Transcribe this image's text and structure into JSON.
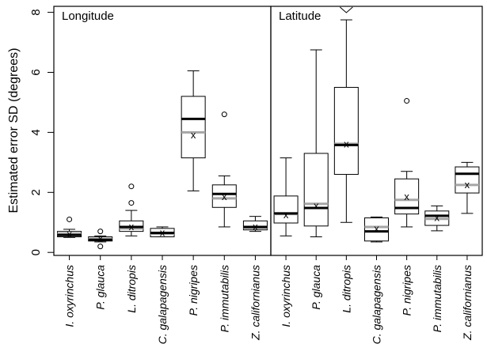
{
  "chart_data": {
    "type": "box",
    "ylabel": "Estimated error SD (degrees)",
    "ylim": [
      -0.1,
      8.2
    ],
    "yticks": [
      "0",
      "2",
      "4",
      "6",
      "8"
    ],
    "categories": [
      "I. oxyrinchus",
      "P. glauca",
      "L. ditropis",
      "C. galapagensis",
      "P. nigripes",
      "P. immutabilis",
      "Z. californianus"
    ],
    "mean_marker": "x",
    "panels": [
      {
        "title": "Longitude",
        "boxes": [
          {
            "whisker_low": 0.5,
            "q1": 0.52,
            "median_dark": 0.58,
            "median_light": 0.62,
            "q3": 0.7,
            "whisker_high": 0.77,
            "mean": 0.6,
            "outliers": [
              1.1
            ]
          },
          {
            "whisker_low": 0.35,
            "q1": 0.38,
            "median_dark": 0.42,
            "median_light": 0.45,
            "q3": 0.52,
            "whisker_high": 0.55,
            "mean": 0.45,
            "outliers": [
              0.2,
              0.7
            ]
          },
          {
            "whisker_low": 0.55,
            "q1": 0.7,
            "median_dark": 0.85,
            "median_light": 0.8,
            "q3": 1.05,
            "whisker_high": 1.4,
            "mean": 0.85,
            "outliers": [
              1.65,
              2.2
            ]
          },
          {
            "whisker_low": 0.52,
            "q1": 0.52,
            "median_dark": 0.65,
            "median_light": 0.62,
            "q3": 0.8,
            "whisker_high": 0.85,
            "mean": 0.65,
            "outliers": []
          },
          {
            "whisker_low": 2.05,
            "q1": 3.15,
            "median_dark": 4.45,
            "median_light": 4.0,
            "q3": 5.2,
            "whisker_high": 6.05,
            "mean": 3.9,
            "outliers": []
          },
          {
            "whisker_low": 0.85,
            "q1": 1.5,
            "median_dark": 1.95,
            "median_light": 1.8,
            "q3": 2.25,
            "whisker_high": 2.55,
            "mean": 1.85,
            "outliers": [
              4.6
            ]
          },
          {
            "whisker_low": 0.7,
            "q1": 0.75,
            "median_dark": 0.85,
            "median_light": 0.82,
            "q3": 1.05,
            "whisker_high": 1.2,
            "mean": 0.85,
            "outliers": []
          }
        ]
      },
      {
        "title": "Latitude",
        "boxes": [
          {
            "whisker_low": 0.55,
            "q1": 0.98,
            "median_dark": 1.3,
            "median_light": 1.28,
            "q3": 1.88,
            "whisker_high": 3.15,
            "mean": 1.25,
            "outliers": []
          },
          {
            "whisker_low": 0.52,
            "q1": 0.88,
            "median_dark": 1.48,
            "median_light": 1.62,
            "q3": 3.3,
            "whisker_high": 6.75,
            "mean": 1.55,
            "outliers": []
          },
          {
            "whisker_low": 1.0,
            "q1": 2.6,
            "median_dark": 3.58,
            "median_light": 3.62,
            "q3": 5.5,
            "whisker_high": 7.75,
            "mean": 3.6,
            "outliers": [],
            "caret_above": true
          },
          {
            "whisker_low": 0.35,
            "q1": 0.38,
            "median_dark": 0.7,
            "median_light": 0.85,
            "q3": 1.15,
            "whisker_high": 1.18,
            "mean": 0.78,
            "outliers": []
          },
          {
            "whisker_low": 0.85,
            "q1": 1.28,
            "median_dark": 1.48,
            "median_light": 1.75,
            "q3": 2.45,
            "whisker_high": 2.7,
            "mean": 1.85,
            "outliers": [
              5.05
            ]
          },
          {
            "whisker_low": 0.72,
            "q1": 0.9,
            "median_dark": 1.22,
            "median_light": 1.12,
            "q3": 1.38,
            "whisker_high": 1.55,
            "mean": 1.15,
            "outliers": []
          },
          {
            "whisker_low": 1.3,
            "q1": 1.98,
            "median_dark": 2.62,
            "median_light": 2.25,
            "q3": 2.85,
            "whisker_high": 3.0,
            "mean": 2.25,
            "outliers": []
          }
        ]
      }
    ],
    "colors": {
      "frame": "#000000",
      "median_dark": "#000000",
      "median_light": "#a6a6a6",
      "box_fill": "#ffffff"
    }
  }
}
